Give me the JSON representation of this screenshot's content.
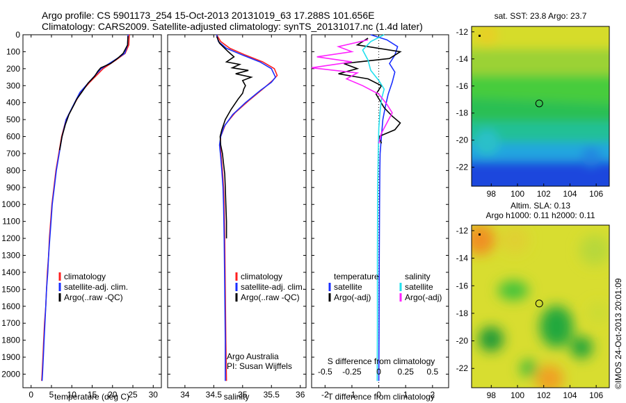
{
  "header": {
    "line1": "Argo profile: CS 5901173_254 15-Oct-2013 20131019_63 17.288S 101.656E",
    "line2": "Climatology: CARS2009. Satellite-adjusted climatology: synTS_20131017.nc (1.4d later)"
  },
  "stamp": "©IMOS 24-Oct-2013 20:01:09",
  "colors": {
    "clim": "#ff2020",
    "sat": "#1a2fff",
    "argo": "#000000",
    "cyan": "#22e0ee",
    "magenta": "#ff22ff"
  },
  "chart_data": [
    {
      "type": "line",
      "name": "temperature",
      "xlabel": "temperature (deg C)",
      "xlim": [
        -2,
        32
      ],
      "ylim": [
        2080,
        0
      ],
      "xticks": [
        0,
        5,
        10,
        15,
        20,
        25,
        30
      ],
      "yticks": [
        0,
        100,
        200,
        300,
        400,
        500,
        600,
        700,
        800,
        900,
        1000,
        1100,
        1200,
        1300,
        1400,
        1500,
        1600,
        1700,
        1800,
        1900,
        2000
      ],
      "legend": [
        "climatology",
        "satellite-adj. clim.",
        "Argo(..raw -QC)"
      ],
      "series": [
        {
          "name": "climatology",
          "color": "clim",
          "points": [
            [
              24.1,
              0
            ],
            [
              24.0,
              60
            ],
            [
              23.1,
              110
            ],
            [
              20.8,
              150
            ],
            [
              17.7,
              200
            ],
            [
              14.4,
              280
            ],
            [
              12.2,
              340
            ],
            [
              10.8,
              400
            ],
            [
              8.6,
              500
            ],
            [
              7.5,
              600
            ],
            [
              6.8,
              700
            ],
            [
              6.1,
              800
            ],
            [
              5.6,
              900
            ],
            [
              5.1,
              1000
            ],
            [
              4.8,
              1100
            ],
            [
              4.5,
              1200
            ],
            [
              4.3,
              1300
            ],
            [
              4.0,
              1400
            ],
            [
              3.8,
              1500
            ],
            [
              3.6,
              1600
            ],
            [
              3.3,
              1700
            ],
            [
              3.1,
              1800
            ],
            [
              2.9,
              1900
            ],
            [
              2.7,
              2000
            ],
            [
              2.6,
              2040
            ]
          ]
        },
        {
          "name": "satellite",
          "color": "sat",
          "points": [
            [
              23.8,
              0
            ],
            [
              23.7,
              60
            ],
            [
              23.0,
              110
            ],
            [
              20.5,
              150
            ],
            [
              17.2,
              200
            ],
            [
              14.2,
              280
            ],
            [
              12.0,
              340
            ],
            [
              10.7,
              400
            ],
            [
              8.6,
              500
            ],
            [
              7.6,
              600
            ],
            [
              6.9,
              700
            ],
            [
              6.2,
              800
            ],
            [
              5.7,
              900
            ],
            [
              5.2,
              1000
            ],
            [
              4.9,
              1100
            ],
            [
              4.6,
              1200
            ],
            [
              4.3,
              1300
            ],
            [
              4.1,
              1400
            ],
            [
              3.8,
              1500
            ],
            [
              3.6,
              1600
            ],
            [
              3.4,
              1700
            ],
            [
              3.2,
              1800
            ],
            [
              3.0,
              1900
            ],
            [
              2.8,
              2000
            ],
            [
              2.7,
              2040
            ]
          ]
        },
        {
          "name": "Argo",
          "color": "argo",
          "points": [
            [
              23.8,
              8
            ],
            [
              23.7,
              60
            ],
            [
              22.6,
              110
            ],
            [
              21.2,
              140
            ],
            [
              19.5,
              170
            ],
            [
              17.1,
              195
            ],
            [
              16.4,
              215
            ],
            [
              15.6,
              245
            ],
            [
              14.0,
              285
            ],
            [
              12.4,
              340
            ],
            [
              11.2,
              380
            ],
            [
              10.6,
              410
            ],
            [
              9.3,
              470
            ],
            [
              8.4,
              530
            ],
            [
              7.6,
              600
            ],
            [
              7.0,
              680
            ]
          ]
        }
      ]
    },
    {
      "type": "line",
      "name": "salinity",
      "xlabel": "salinity",
      "xlim": [
        33.7,
        36.1
      ],
      "ylim": [
        2080,
        0
      ],
      "xticks": [
        34,
        34.5,
        35,
        35.5,
        36
      ],
      "legend": [
        "climatology",
        "satellite-adj. clim.",
        "Argo(..raw -QC)"
      ],
      "note": [
        "Argo Australia",
        "PI: Susan Wijffels"
      ],
      "series": [
        {
          "name": "climatology",
          "color": "clim",
          "points": [
            [
              34.55,
              0
            ],
            [
              34.62,
              40
            ],
            [
              34.78,
              80
            ],
            [
              35.05,
              120
            ],
            [
              35.35,
              160
            ],
            [
              35.55,
              200
            ],
            [
              35.6,
              240
            ],
            [
              35.52,
              270
            ],
            [
              35.35,
              320
            ],
            [
              35.1,
              390
            ],
            [
              34.87,
              460
            ],
            [
              34.7,
              530
            ],
            [
              34.62,
              600
            ],
            [
              34.61,
              650
            ],
            [
              34.63,
              720
            ],
            [
              34.65,
              800
            ],
            [
              34.67,
              900
            ],
            [
              34.68,
              1000
            ],
            [
              34.69,
              1200
            ],
            [
              34.7,
              1500
            ],
            [
              34.71,
              1800
            ],
            [
              34.72,
              2040
            ]
          ]
        },
        {
          "name": "satellite",
          "color": "sat",
          "points": [
            [
              34.55,
              0
            ],
            [
              34.58,
              40
            ],
            [
              34.72,
              80
            ],
            [
              35.0,
              120
            ],
            [
              35.3,
              160
            ],
            [
              35.5,
              200
            ],
            [
              35.57,
              250
            ],
            [
              35.5,
              280
            ],
            [
              35.3,
              330
            ],
            [
              35.05,
              400
            ],
            [
              34.83,
              470
            ],
            [
              34.68,
              540
            ],
            [
              34.62,
              600
            ],
            [
              34.6,
              650
            ],
            [
              34.62,
              720
            ],
            [
              34.64,
              800
            ],
            [
              34.66,
              900
            ],
            [
              34.67,
              1000
            ],
            [
              34.68,
              1200
            ],
            [
              34.69,
              1500
            ],
            [
              34.7,
              1800
            ],
            [
              34.7,
              2040
            ]
          ]
        },
        {
          "name": "Argo",
          "color": "argo",
          "points": [
            [
              34.55,
              10
            ],
            [
              34.6,
              50
            ],
            [
              34.75,
              100
            ],
            [
              34.85,
              130
            ],
            [
              34.72,
              160
            ],
            [
              34.95,
              175
            ],
            [
              34.82,
              195
            ],
            [
              35.1,
              210
            ],
            [
              34.88,
              230
            ],
            [
              35.15,
              250
            ],
            [
              35.0,
              270
            ],
            [
              35.05,
              300
            ],
            [
              35.02,
              320
            ],
            [
              35.0,
              345
            ],
            [
              34.92,
              380
            ],
            [
              34.8,
              440
            ],
            [
              34.7,
              500
            ],
            [
              34.64,
              560
            ],
            [
              34.61,
              600
            ],
            [
              34.62,
              650
            ],
            [
              34.65,
              700
            ],
            [
              34.67,
              760
            ],
            [
              34.69,
              820
            ],
            [
              34.7,
              900
            ],
            [
              34.71,
              1000
            ],
            [
              34.72,
              1100
            ],
            [
              34.72,
              1200
            ]
          ]
        }
      ]
    },
    {
      "type": "line",
      "name": "difference from climatology",
      "xlabel": "T difference from climatology",
      "x2label": "S difference from climatology",
      "xlim": [
        -2.5,
        2.6
      ],
      "ylim": [
        2080,
        0
      ],
      "xticks": [
        -2,
        -1,
        0,
        1,
        2
      ],
      "x2ticks": [
        "-0.5",
        "-0.25",
        "0",
        "0.25",
        "0.5"
      ],
      "x2tick_pos": [
        -2,
        -1,
        0,
        1,
        2
      ],
      "legend_left": [
        "temperature",
        "satellite",
        "Argo(-adj)"
      ],
      "legend_right": [
        "salinity",
        "satellite",
        "Argo(-adj)"
      ],
      "series": [
        {
          "name": "T satellite",
          "color": "sat",
          "points": [
            [
              -0.3,
              0
            ],
            [
              0.3,
              30
            ],
            [
              0.7,
              70
            ],
            [
              0.6,
              120
            ],
            [
              0.4,
              170
            ],
            [
              0.6,
              220
            ],
            [
              0.5,
              280
            ],
            [
              0.35,
              350
            ],
            [
              0.25,
              420
            ],
            [
              0.15,
              500
            ],
            [
              0.1,
              600
            ],
            [
              0.05,
              700
            ],
            [
              0.04,
              800
            ],
            [
              0.03,
              1000
            ],
            [
              0.02,
              1300
            ],
            [
              0.01,
              1700
            ],
            [
              0.0,
              2040
            ]
          ]
        },
        {
          "name": "T Argo",
          "color": "argo",
          "points": [
            [
              -0.4,
              20
            ],
            [
              -0.8,
              60
            ],
            [
              0.8,
              100
            ],
            [
              0.4,
              140
            ],
            [
              -1.3,
              170
            ],
            [
              -0.8,
              200
            ],
            [
              -1.5,
              230
            ],
            [
              -0.4,
              260
            ],
            [
              0.1,
              300
            ],
            [
              -0.1,
              350
            ],
            [
              0.2,
              430
            ],
            [
              0.5,
              480
            ],
            [
              0.8,
              520
            ],
            [
              0.6,
              560
            ],
            [
              0.0,
              600
            ],
            [
              0.1,
              640
            ]
          ]
        },
        {
          "name": "S satellite",
          "color": "cyan",
          "points": [
            [
              0.2,
              0
            ],
            [
              -0.3,
              40
            ],
            [
              -0.6,
              90
            ],
            [
              -0.4,
              150
            ],
            [
              -0.3,
              210
            ],
            [
              0.0,
              270
            ],
            [
              0.2,
              320
            ],
            [
              0.1,
              380
            ],
            [
              0.05,
              450
            ],
            [
              0.0,
              550
            ],
            [
              -0.02,
              700
            ],
            [
              -0.04,
              900
            ],
            [
              -0.05,
              1300
            ],
            [
              -0.05,
              1700
            ],
            [
              -0.06,
              2040
            ]
          ]
        },
        {
          "name": "S Argo",
          "color": "magenta",
          "points": [
            [
              -0.4,
              30
            ],
            [
              -1.5,
              70
            ],
            [
              -1.0,
              100
            ],
            [
              -2.3,
              130
            ],
            [
              -1.0,
              160
            ],
            [
              -2.5,
              195
            ],
            [
              -0.8,
              225
            ],
            [
              -1.2,
              260
            ],
            [
              -0.6,
              300
            ],
            [
              0.0,
              350
            ],
            [
              0.3,
              410
            ],
            [
              0.5,
              460
            ],
            [
              0.3,
              520
            ],
            [
              0.1,
              580
            ],
            [
              0.0,
              640
            ]
          ]
        }
      ]
    },
    {
      "type": "heatmap",
      "name": "SST map",
      "title": "sat. SST: 23.8  Argo: 23.7",
      "xlim": [
        96.5,
        107
      ],
      "ylim": [
        -23.4,
        -11.6
      ],
      "xticks": [
        98,
        100,
        102,
        104,
        106
      ],
      "yticks": [
        -12,
        -14,
        -16,
        -18,
        -20,
        -22
      ],
      "marker": [
        101.656,
        -17.288
      ]
    },
    {
      "type": "heatmap",
      "name": "SLA map",
      "title_lines": [
        "Altim. SLA: 0.13",
        "Argo h1000: 0.11 h2000: 0.11"
      ],
      "xlim": [
        96.5,
        107
      ],
      "ylim": [
        -23.4,
        -11.6
      ],
      "xticks": [
        98,
        100,
        102,
        104,
        106
      ],
      "yticks": [
        -12,
        -14,
        -16,
        -18,
        -20,
        -22
      ],
      "marker": [
        101.656,
        -17.288
      ]
    }
  ]
}
